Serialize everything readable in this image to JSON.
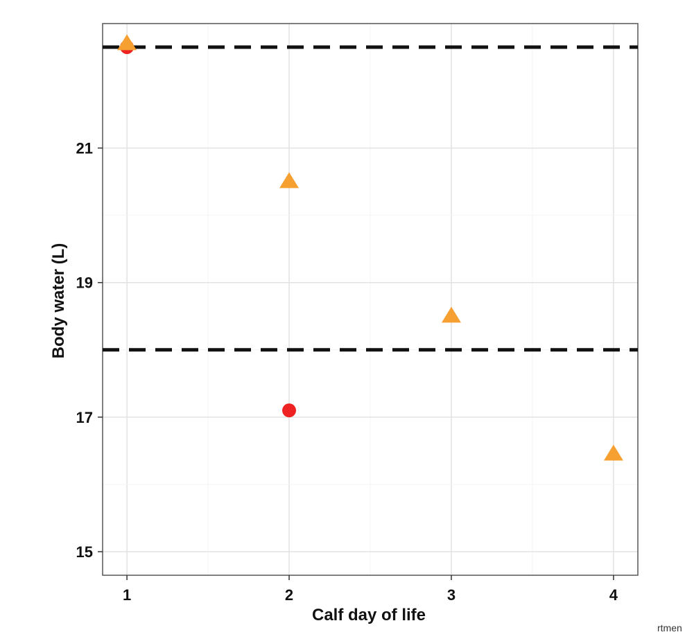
{
  "chart_data": {
    "type": "scatter",
    "title": "",
    "xlabel": "Calf day of life",
    "ylabel": "Body water (L)",
    "xlim": [
      0.85,
      4.15
    ],
    "ylim": [
      14.65,
      22.85
    ],
    "x_ticks": [
      1,
      2,
      3,
      4
    ],
    "y_ticks": [
      15,
      17,
      19,
      21
    ],
    "grid": true,
    "legend": "none",
    "series": [
      {
        "marker": "circle",
        "color": "#ee2222",
        "points": [
          {
            "x": 1,
            "y": 22.5
          },
          {
            "x": 2,
            "y": 17.1
          }
        ]
      },
      {
        "marker": "triangle",
        "color": "#f5a030",
        "points": [
          {
            "x": 1,
            "y": 22.55
          },
          {
            "x": 2,
            "y": 20.5
          },
          {
            "x": 3,
            "y": 18.5
          },
          {
            "x": 4,
            "y": 16.45
          }
        ]
      }
    ],
    "reference_lines": [
      {
        "orientation": "horizontal",
        "y": 22.5,
        "style": "dashed",
        "color": "#111111"
      },
      {
        "orientation": "horizontal",
        "y": 18.0,
        "style": "dashed",
        "color": "#111111"
      }
    ]
  },
  "watermark": "rtmen"
}
